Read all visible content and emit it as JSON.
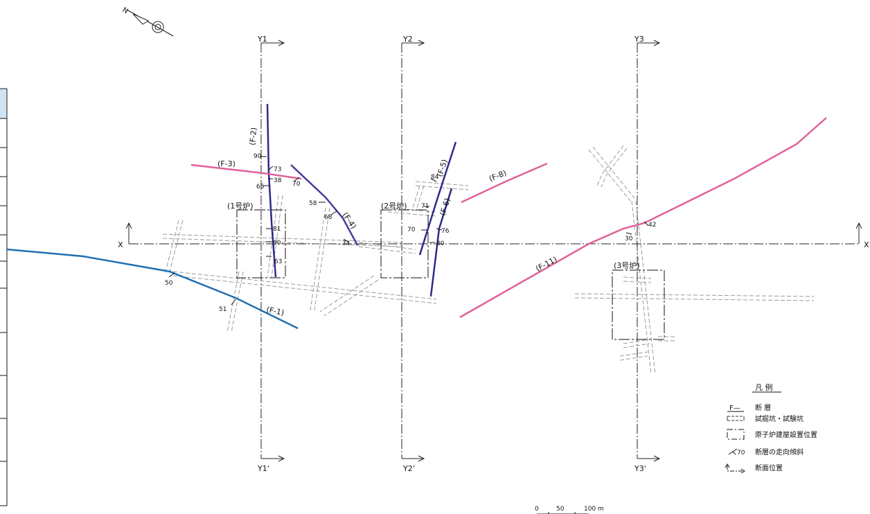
{
  "sections": {
    "x_label_left": "X",
    "x_label_right": "X",
    "y1": "Y1",
    "y1p": "Y1'",
    "y2": "Y2",
    "y2p": "Y2'",
    "y3": "Y3",
    "y3p": "Y3'"
  },
  "reactors": {
    "r1": "(1号炉)",
    "r2": "(2号炉)",
    "r3": "(3号炉)"
  },
  "faults": [
    {
      "id": "F-1",
      "label": "(F-1)",
      "color": "#1f6fb2"
    },
    {
      "id": "F-2",
      "label": "(F-2)",
      "color": "#2a2a8c"
    },
    {
      "id": "F-3",
      "label": "(F-3)",
      "color": "#e0609a"
    },
    {
      "id": "F-4",
      "label": "(F-4)",
      "color": "#4a3a9a"
    },
    {
      "id": "F-5",
      "label": "(F-5)",
      "color": "#2a2a8c"
    },
    {
      "id": "F-6",
      "label": "(F-6)",
      "color": "#2a2a8c"
    },
    {
      "id": "F-8",
      "label": "(F-8)",
      "color": "#e0609a"
    },
    {
      "id": "F-11",
      "label": "(F-11)",
      "color": "#e0609a"
    }
  ],
  "dips": [
    "90",
    "73",
    "38",
    "65",
    "70",
    "58",
    "68",
    "74",
    "81",
    "80",
    "63",
    "50",
    "51",
    "71",
    "84",
    "70",
    "76",
    "80",
    "42",
    "30"
  ],
  "legend": {
    "title": "凡 例",
    "fault_symbol": "F—",
    "fault": "断 層",
    "tunnel": "試掘坑・試験坑",
    "building": "原子炉建屋設置位置",
    "strike_dip_value": "70",
    "strike_dip": "断層の走向傾斜",
    "section": "断面位置"
  },
  "scale": {
    "zero": "0",
    "mid": "50",
    "end": "100 m"
  },
  "north": "N"
}
